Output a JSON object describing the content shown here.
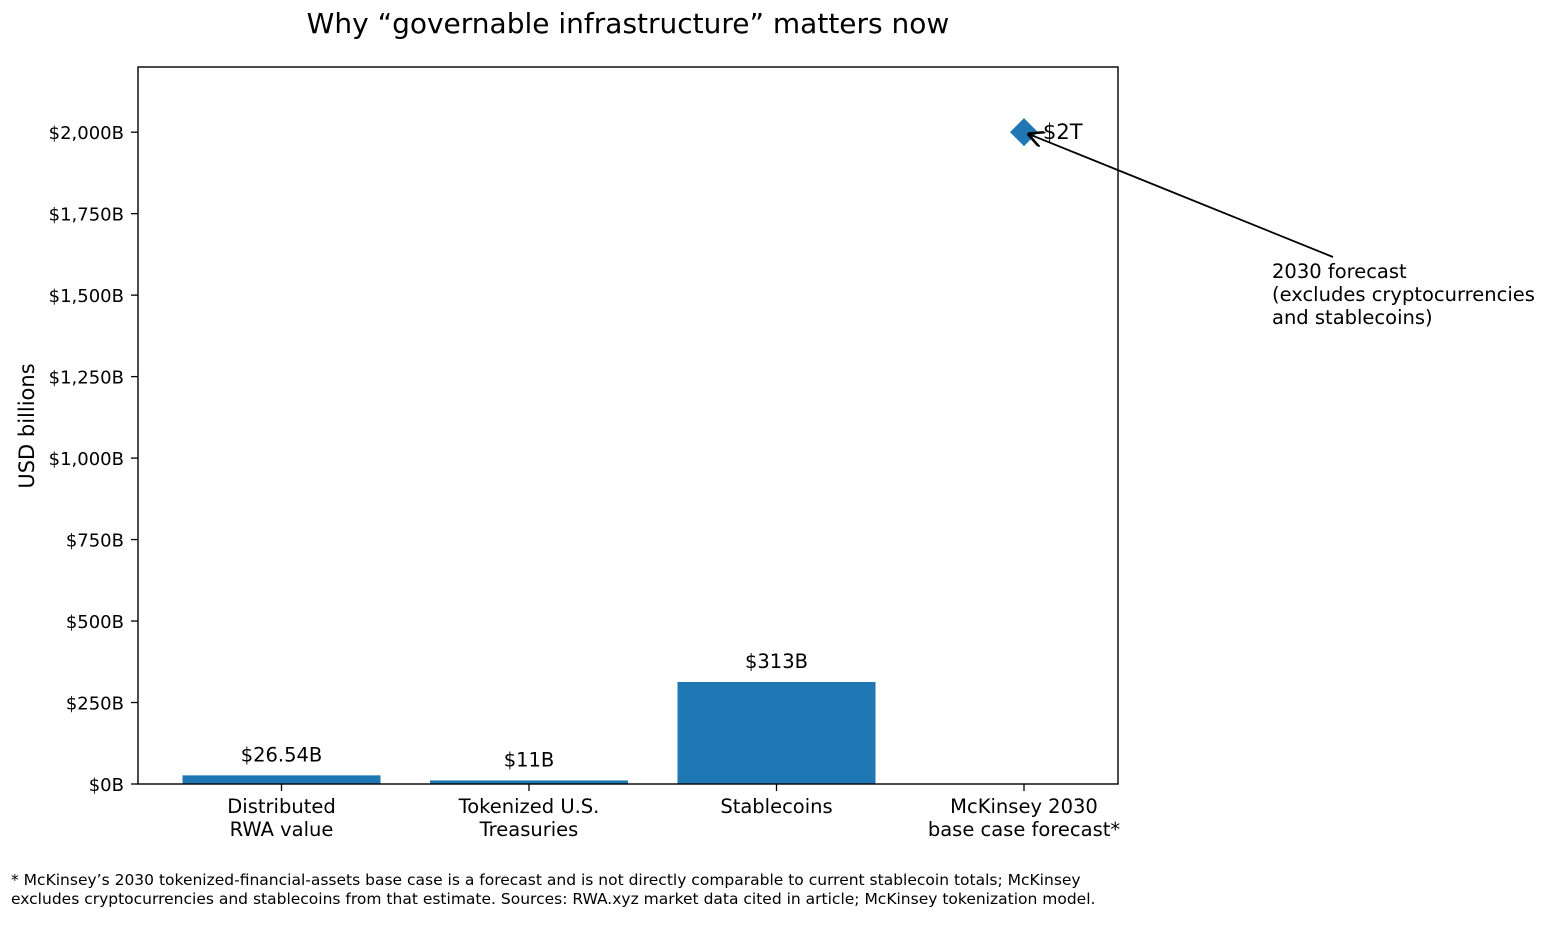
{
  "chart_data": {
    "type": "bar",
    "title": "Why “governable infrastructure” matters now",
    "xlabel": "",
    "ylabel": "USD billions",
    "ylim": [
      0,
      2200
    ],
    "y_ticks": [
      0,
      250,
      500,
      750,
      1000,
      1250,
      1500,
      1750,
      2000
    ],
    "y_tick_labels": [
      "$0B",
      "$250B",
      "$500B",
      "$750B",
      "$1,000B",
      "$1,250B",
      "$1,500B",
      "$1,750B",
      "$2,000B"
    ],
    "grid": false,
    "bar_color": "#1f77b4",
    "categories": [
      [
        "Distributed",
        "RWA value"
      ],
      [
        "Tokenized U.S.",
        "Treasuries"
      ],
      [
        "Stablecoins"
      ],
      [
        "McKinsey 2030",
        "base case forecast*"
      ]
    ],
    "values": [
      26.54,
      11,
      313,
      null
    ],
    "value_labels": [
      "$26.54B",
      "$11B",
      "$313B",
      null
    ],
    "forecast_point": {
      "category_index": 3,
      "value": 2000,
      "marker": "diamond",
      "label": "$2T"
    },
    "annotation": {
      "lines": [
        "2030 forecast",
        "(excludes cryptocurrencies",
        "and stablecoins)"
      ]
    }
  },
  "footnote": "* McKinsey’s 2030 tokenized-financial-assets base case is a forecast and is not directly comparable to current stablecoin totals; McKinsey excludes cryptocurrencies and stablecoins from that estimate. Sources: RWA.xyz market data cited in article; McKinsey tokenization model."
}
